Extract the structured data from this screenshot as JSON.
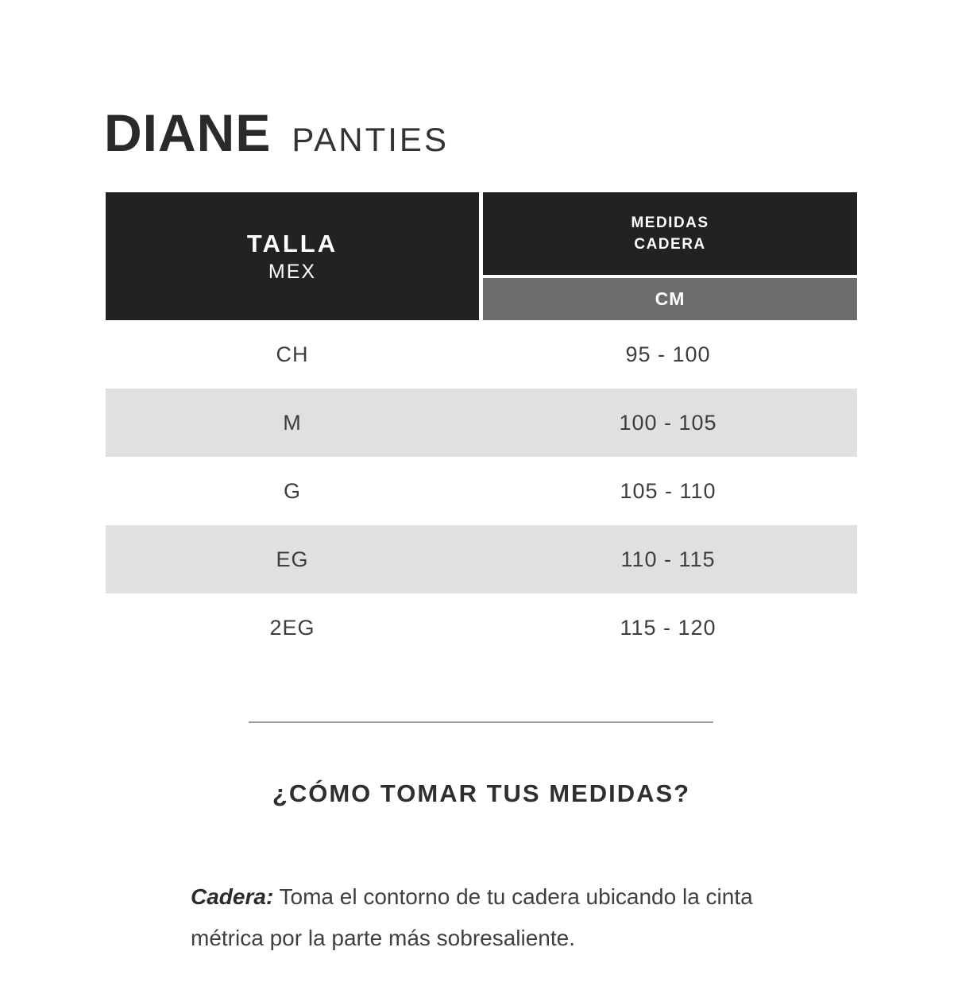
{
  "title": {
    "brand": "DIANE",
    "product_line": "PANTIES"
  },
  "size_table": {
    "header": {
      "size_col_line1": "TALLA",
      "size_col_line2": "MEX",
      "measure_col_line1": "MEDIDAS",
      "measure_col_line2": "CADERA",
      "unit_label": "CM"
    },
    "rows": [
      {
        "talla": "CH",
        "medida_cm": "95 - 100"
      },
      {
        "talla": "M",
        "medida_cm": "100 - 105"
      },
      {
        "talla": "G",
        "medida_cm": "105 - 110"
      },
      {
        "talla": "EG",
        "medida_cm": "110 - 115"
      },
      {
        "talla": "2EG",
        "medida_cm": "115 - 120"
      }
    ]
  },
  "measure_section": {
    "heading": "¿CÓMO TOMAR TUS MEDIDAS?",
    "term": "Cadera:",
    "description": " Toma el contorno de tu cadera ubicando la cinta métrica por la parte más sobresaliente."
  },
  "colors": {
    "header_black": "#222222",
    "unit_gray": "#6d6d6d",
    "row_stripe": "#e0e0e0",
    "divider_gray": "#9c9c9c",
    "text_dark": "#3d3d3d"
  },
  "chart_data": {
    "type": "table",
    "title": "DIANE PANTIES",
    "columns": [
      "TALLA MEX",
      "MEDIDAS CADERA (CM)"
    ],
    "rows": [
      [
        "CH",
        "95 - 100"
      ],
      [
        "M",
        "100 - 105"
      ],
      [
        "G",
        "105 - 110"
      ],
      [
        "EG",
        "110 - 115"
      ],
      [
        "2EG",
        "115 - 120"
      ]
    ]
  }
}
